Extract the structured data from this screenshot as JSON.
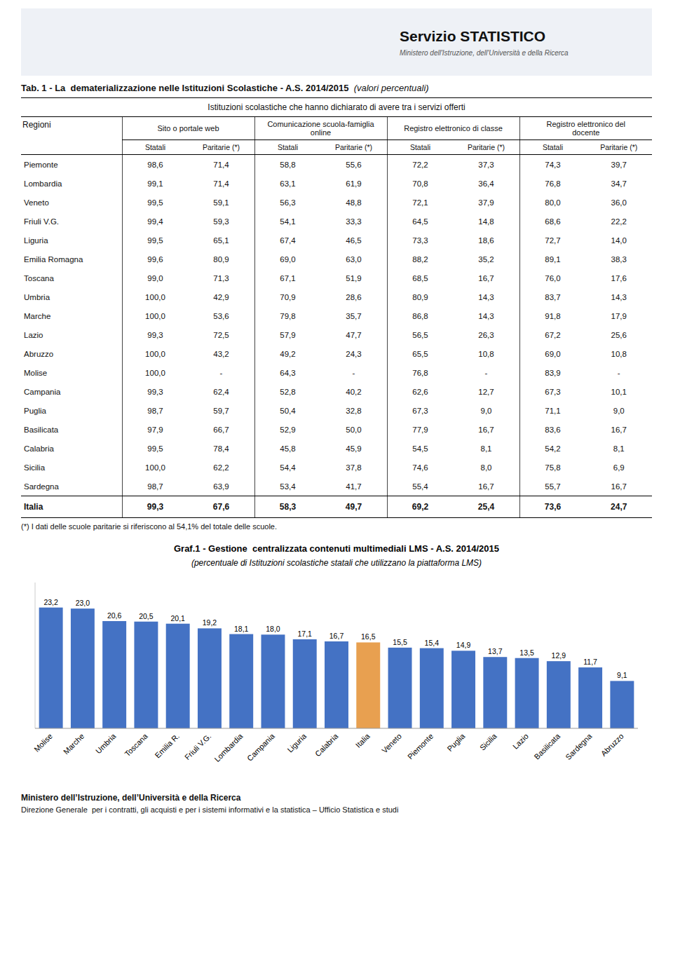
{
  "chart_data": {
    "type": "bar",
    "title": "Graf.1 - Gestione  centralizzata contenuti multimediali LMS - A.S. 2014/2015",
    "subtitle": "(percentuale di Istituzioni scolastiche statali che utilizzano la piattaforma LMS)",
    "categories": [
      "Molise",
      "Marche",
      "Umbria",
      "Toscana",
      "Emilia R.",
      "Friuli V.G.",
      "Lombardia",
      "Campania",
      "Liguria",
      "Calabria",
      "Italia",
      "Veneto",
      "Piemonte",
      "Puglia",
      "Sicilia",
      "Lazio",
      "Basilicata",
      "Sardegna",
      "Abruzzo"
    ],
    "values": [
      23.2,
      23.0,
      20.6,
      20.5,
      20.1,
      19.2,
      18.1,
      18.0,
      17.1,
      16.7,
      16.5,
      15.5,
      15.4,
      14.9,
      13.7,
      13.5,
      12.9,
      11.7,
      9.1
    ],
    "value_labels": [
      "23,2",
      "23,0",
      "20,6",
      "20,5",
      "20,1",
      "19,2",
      "18,1",
      "18,0",
      "17,1",
      "16,7",
      "16,5",
      "15,5",
      "15,4",
      "14,9",
      "13,7",
      "13,5",
      "12,9",
      "11,7",
      "9,1"
    ],
    "colors": [
      "#4472C4",
      "#4472C4",
      "#4472C4",
      "#4472C4",
      "#4472C4",
      "#4472C4",
      "#4472C4",
      "#4472C4",
      "#4472C4",
      "#4472C4",
      "#E8A050",
      "#4472C4",
      "#4472C4",
      "#4472C4",
      "#4472C4",
      "#4472C4",
      "#4472C4",
      "#4472C4",
      "#4472C4"
    ],
    "ylim": [
      0,
      28
    ],
    "data_labels": true,
    "tick_labels": "x",
    "grid": false
  },
  "header": {
    "title": "Servizio STATISTICO",
    "subtitle": "Ministero dell'Istruzione, dell'Università e della Ricerca"
  },
  "table": {
    "title": "Tab. 1 - La  dematerializzazione nelle Istituzioni Scolastiche - A.S. 2014/2015",
    "title_italic": "(valori percentuali)",
    "subtitle": "Istituzioni scolastiche che hanno dichiarato di avere tra i servizi offerti",
    "row_header": "Regioni",
    "col_groups": [
      "Sito o portale web",
      "Comunicazione scuola-famiglia\nonline",
      "Registro elettronico di classe",
      "Registro elettronico del\ndocente"
    ],
    "col_headers": [
      "Statali",
      "Paritarie (*)",
      "Statali",
      "Paritarie (*)",
      "Statali",
      "Paritarie (*)",
      "Statali",
      "Paritarie (*)"
    ],
    "rows": [
      [
        "Piemonte",
        "98,6",
        "71,4",
        "58,8",
        "55,6",
        "72,2",
        "37,3",
        "74,3",
        "39,7"
      ],
      [
        "Lombardia",
        "99,1",
        "71,4",
        "63,1",
        "61,9",
        "70,8",
        "36,4",
        "76,8",
        "34,7"
      ],
      [
        "Veneto",
        "99,5",
        "59,1",
        "56,3",
        "48,8",
        "72,1",
        "37,9",
        "80,0",
        "36,0"
      ],
      [
        "Friuli V.G.",
        "99,4",
        "59,3",
        "54,1",
        "33,3",
        "64,5",
        "14,8",
        "68,6",
        "22,2"
      ],
      [
        "Liguria",
        "99,5",
        "65,1",
        "67,4",
        "46,5",
        "73,3",
        "18,6",
        "72,7",
        "14,0"
      ],
      [
        "Emilia Romagna",
        "99,6",
        "80,9",
        "69,0",
        "63,0",
        "88,2",
        "35,2",
        "89,1",
        "38,3"
      ],
      [
        "Toscana",
        "99,0",
        "71,3",
        "67,1",
        "51,9",
        "68,5",
        "16,7",
        "76,0",
        "17,6"
      ],
      [
        "Umbria",
        "100,0",
        "42,9",
        "70,9",
        "28,6",
        "80,9",
        "14,3",
        "83,7",
        "14,3"
      ],
      [
        "Marche",
        "100,0",
        "53,6",
        "79,8",
        "35,7",
        "86,8",
        "14,3",
        "91,8",
        "17,9"
      ],
      [
        "Lazio",
        "99,3",
        "72,5",
        "57,9",
        "47,7",
        "56,5",
        "26,3",
        "67,2",
        "25,6"
      ],
      [
        "Abruzzo",
        "100,0",
        "43,2",
        "49,2",
        "24,3",
        "65,5",
        "10,8",
        "69,0",
        "10,8"
      ],
      [
        "Molise",
        "100,0",
        "-",
        "64,3",
        "-",
        "76,8",
        "-",
        "83,9",
        "-"
      ],
      [
        "Campania",
        "99,3",
        "62,4",
        "52,8",
        "40,2",
        "62,6",
        "12,7",
        "67,3",
        "10,1"
      ],
      [
        "Puglia",
        "98,7",
        "59,7",
        "50,4",
        "32,8",
        "67,3",
        "9,0",
        "71,1",
        "9,0"
      ],
      [
        "Basilicata",
        "97,9",
        "66,7",
        "52,9",
        "50,0",
        "77,9",
        "16,7",
        "83,6",
        "16,7"
      ],
      [
        "Calabria",
        "99,5",
        "78,4",
        "45,8",
        "45,9",
        "54,5",
        "8,1",
        "54,2",
        "8,1"
      ],
      [
        "Sicilia",
        "100,0",
        "62,2",
        "54,4",
        "37,8",
        "74,6",
        "8,0",
        "75,8",
        "6,9"
      ],
      [
        "Sardegna",
        "98,7",
        "63,9",
        "53,4",
        "41,7",
        "55,4",
        "16,7",
        "55,7",
        "16,7"
      ]
    ],
    "total_row": [
      "Italia",
      "99,3",
      "67,6",
      "58,3",
      "49,7",
      "69,2",
      "25,4",
      "73,6",
      "24,7"
    ],
    "footnote": "(*) I dati delle scuole paritarie si riferiscono al 54,1% del totale delle scuole."
  },
  "footer": [
    "Ministero dell’Istruzione, dell’Università e della Ricerca",
    "Direzione Generale  per i contratti, gli acquisti e per i sistemi informativi e la statistica – Ufficio Statistica e studi"
  ]
}
